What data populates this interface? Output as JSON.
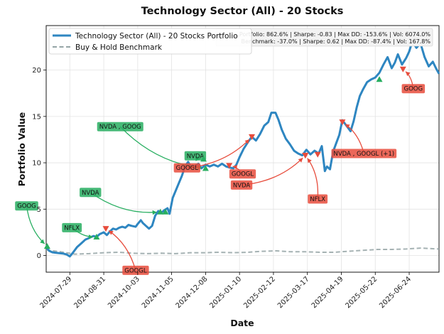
{
  "chart_data": {
    "type": "line",
    "title": "Technology Sector (All) - 20 Stocks",
    "xlabel": "Date",
    "ylabel": "Portfolio Value",
    "x_range": [
      "2024-07-06",
      "2025-07-23"
    ],
    "ylim": [
      -1.8,
      24.8
    ],
    "x_ticks": [
      "2024-07-29",
      "2024-08-31",
      "2024-10-03",
      "2024-11-05",
      "2024-12-08",
      "2025-01-10",
      "2025-02-12",
      "2025-03-17",
      "2025-04-19",
      "2025-05-22",
      "2025-06-24"
    ],
    "y_ticks": [
      0,
      5,
      10,
      15,
      20
    ],
    "grid": true,
    "legend_position": "top-left",
    "series": [
      {
        "name": "Technology Sector (All) - 20 Stocks Portfolio",
        "color": "#2e86c1",
        "style": "solid",
        "points": [
          [
            "2024-07-06",
            0.9
          ],
          [
            "2024-07-09",
            0.5
          ],
          [
            "2024-07-12",
            0.35
          ],
          [
            "2024-07-15",
            0.3
          ],
          [
            "2024-07-19",
            0.25
          ],
          [
            "2024-07-23",
            0.2
          ],
          [
            "2024-07-26",
            0.1
          ],
          [
            "2024-07-29",
            -0.1
          ],
          [
            "2024-08-01",
            0.3
          ],
          [
            "2024-08-05",
            0.9
          ],
          [
            "2024-08-09",
            1.3
          ],
          [
            "2024-08-13",
            1.7
          ],
          [
            "2024-08-17",
            1.9
          ],
          [
            "2024-08-21",
            2.1
          ],
          [
            "2024-08-24",
            2.0
          ],
          [
            "2024-08-27",
            2.3
          ],
          [
            "2024-08-31",
            2.5
          ],
          [
            "2024-09-03",
            2.2
          ],
          [
            "2024-09-06",
            2.6
          ],
          [
            "2024-09-09",
            2.9
          ],
          [
            "2024-09-12",
            2.8
          ],
          [
            "2024-09-15",
            3.0
          ],
          [
            "2024-09-18",
            3.1
          ],
          [
            "2024-09-21",
            3.0
          ],
          [
            "2024-09-24",
            3.3
          ],
          [
            "2024-09-27",
            3.2
          ],
          [
            "2024-10-01",
            3.1
          ],
          [
            "2024-10-03",
            3.4
          ],
          [
            "2024-10-06",
            3.8
          ],
          [
            "2024-10-08",
            3.5
          ],
          [
            "2024-10-11",
            3.2
          ],
          [
            "2024-10-14",
            2.9
          ],
          [
            "2024-10-17",
            3.2
          ],
          [
            "2024-10-20",
            4.3
          ],
          [
            "2024-10-23",
            4.8
          ],
          [
            "2024-10-26",
            4.6
          ],
          [
            "2024-10-29",
            4.9
          ],
          [
            "2024-11-01",
            5.1
          ],
          [
            "2024-11-03",
            4.5
          ],
          [
            "2024-11-06",
            6.2
          ],
          [
            "2024-11-09",
            7.0
          ],
          [
            "2024-11-12",
            7.8
          ],
          [
            "2024-11-15",
            8.6
          ],
          [
            "2024-11-18",
            9.6
          ],
          [
            "2024-11-21",
            10.1
          ],
          [
            "2024-11-24",
            9.5
          ],
          [
            "2024-11-27",
            9.6
          ],
          [
            "2024-12-01",
            9.9
          ],
          [
            "2024-12-04",
            9.4
          ],
          [
            "2024-12-08",
            9.8
          ],
          [
            "2024-12-12",
            9.6
          ],
          [
            "2024-12-16",
            9.8
          ],
          [
            "2024-12-20",
            9.6
          ],
          [
            "2024-12-24",
            9.9
          ],
          [
            "2024-12-28",
            9.6
          ],
          [
            "2024-12-31",
            9.5
          ],
          [
            "2025-01-04",
            9.4
          ],
          [
            "2025-01-07",
            9.8
          ],
          [
            "2025-01-10",
            10.6
          ],
          [
            "2025-01-14",
            11.5
          ],
          [
            "2025-01-18",
            12.2
          ],
          [
            "2025-01-22",
            12.8
          ],
          [
            "2025-01-26",
            12.4
          ],
          [
            "2025-01-30",
            13.1
          ],
          [
            "2025-02-03",
            14.0
          ],
          [
            "2025-02-07",
            14.4
          ],
          [
            "2025-02-10",
            15.4
          ],
          [
            "2025-02-14",
            15.4
          ],
          [
            "2025-02-17",
            14.6
          ],
          [
            "2025-02-20",
            13.6
          ],
          [
            "2025-02-24",
            12.6
          ],
          [
            "2025-02-28",
            12.0
          ],
          [
            "2025-03-04",
            11.3
          ],
          [
            "2025-03-08",
            11.0
          ],
          [
            "2025-03-12",
            10.8
          ],
          [
            "2025-03-16",
            11.4
          ],
          [
            "2025-03-20",
            10.9
          ],
          [
            "2025-03-24",
            11.3
          ],
          [
            "2025-03-28",
            11.0
          ],
          [
            "2025-03-31",
            11.8
          ],
          [
            "2025-04-03",
            9.1
          ],
          [
            "2025-04-05",
            9.6
          ],
          [
            "2025-04-08",
            9.3
          ],
          [
            "2025-04-11",
            11.2
          ],
          [
            "2025-04-14",
            12.1
          ],
          [
            "2025-04-17",
            13.0
          ],
          [
            "2025-04-20",
            14.6
          ],
          [
            "2025-04-24",
            14.0
          ],
          [
            "2025-04-28",
            13.4
          ],
          [
            "2025-05-01",
            14.5
          ],
          [
            "2025-05-04",
            16.0
          ],
          [
            "2025-05-07",
            17.2
          ],
          [
            "2025-05-10",
            17.9
          ],
          [
            "2025-05-14",
            18.7
          ],
          [
            "2025-05-18",
            19.0
          ],
          [
            "2025-05-22",
            19.2
          ],
          [
            "2025-05-26",
            19.7
          ],
          [
            "2025-05-30",
            20.6
          ],
          [
            "2025-06-03",
            21.4
          ],
          [
            "2025-06-07",
            20.2
          ],
          [
            "2025-06-10",
            20.8
          ],
          [
            "2025-06-13",
            21.7
          ],
          [
            "2025-06-17",
            20.6
          ],
          [
            "2025-06-21",
            21.3
          ],
          [
            "2025-06-24",
            22.0
          ],
          [
            "2025-06-27",
            23.1
          ],
          [
            "2025-07-01",
            22.4
          ],
          [
            "2025-07-05",
            22.9
          ],
          [
            "2025-07-09",
            21.4
          ],
          [
            "2025-07-13",
            20.4
          ],
          [
            "2025-07-17",
            20.9
          ],
          [
            "2025-07-20",
            20.2
          ],
          [
            "2025-07-23",
            19.6
          ]
        ]
      },
      {
        "name": "Buy & Hold Benchmark",
        "color": "#95a5a6",
        "style": "dashed",
        "points": [
          [
            "2024-07-06",
            0.6
          ],
          [
            "2024-07-20",
            0.4
          ],
          [
            "2024-08-03",
            0.15
          ],
          [
            "2024-08-17",
            0.2
          ],
          [
            "2024-08-31",
            0.3
          ],
          [
            "2024-09-14",
            0.35
          ],
          [
            "2024-09-28",
            0.25
          ],
          [
            "2024-10-12",
            0.2
          ],
          [
            "2024-10-26",
            0.25
          ],
          [
            "2024-11-09",
            0.2
          ],
          [
            "2024-11-23",
            0.3
          ],
          [
            "2024-12-07",
            0.3
          ],
          [
            "2024-12-21",
            0.35
          ],
          [
            "2025-01-04",
            0.3
          ],
          [
            "2025-01-18",
            0.35
          ],
          [
            "2025-02-01",
            0.45
          ],
          [
            "2025-02-15",
            0.5
          ],
          [
            "2025-03-01",
            0.4
          ],
          [
            "2025-03-15",
            0.4
          ],
          [
            "2025-03-29",
            0.35
          ],
          [
            "2025-04-12",
            0.35
          ],
          [
            "2025-04-26",
            0.45
          ],
          [
            "2025-05-10",
            0.55
          ],
          [
            "2025-05-24",
            0.65
          ],
          [
            "2025-06-07",
            0.65
          ],
          [
            "2025-06-21",
            0.7
          ],
          [
            "2025-07-05",
            0.8
          ],
          [
            "2025-07-23",
            0.7
          ]
        ]
      }
    ],
    "stats": [
      "Portfolio: 862.6% | Sharpe: -0.83 | Max DD: -153.6% | Vol: 6074.0%",
      "Benchmark: -37.0% | Sharpe: 0.62 | Max DD: -87.4% | Vol: 167.8%"
    ],
    "buy_color": "#27ae60",
    "sell_color": "#e74c3c",
    "signals": [
      {
        "side": "buy",
        "date": "2024-07-07",
        "value": 1.0,
        "label": "GOOG",
        "label_date": "2024-06-17",
        "label_value": 5.35
      },
      {
        "side": "buy",
        "date": "2024-08-24",
        "value": 2.0,
        "label": "NFLX",
        "label_date": "2024-07-31",
        "label_value": 3.0
      },
      {
        "side": "buy",
        "date": "2024-10-25",
        "value": 4.7,
        "label": "NVDA",
        "label_date": "2024-08-18",
        "label_value": 6.8
      },
      {
        "side": "buy",
        "date": "2024-10-30",
        "value": 4.7,
        "label": null
      },
      {
        "side": "buy",
        "date": "2024-12-08",
        "value": 9.4,
        "label": "NVDA , GOOG",
        "label_date": "2024-09-16",
        "label_value": 13.9
      },
      {
        "side": "buy",
        "date": "2024-12-06",
        "value": 10.4,
        "label": "NVDA",
        "label_date": "2024-11-28",
        "label_value": 10.75
      },
      {
        "side": "buy",
        "date": "2025-05-26",
        "value": 19.0,
        "label": null
      },
      {
        "side": "sell",
        "date": "2024-09-02",
        "value": 2.9,
        "label": "GOOGL",
        "label_date": "2024-10-01",
        "label_value": -1.6
      },
      {
        "side": "sell",
        "date": "2024-12-31",
        "value": 9.7,
        "label": "GOOGL",
        "label_date": "2025-01-13",
        "label_value": 8.8
      },
      {
        "side": "sell",
        "date": "2025-01-22",
        "value": 12.8,
        "label": "GOOGL",
        "label_date": "2024-11-20",
        "label_value": 9.45
      },
      {
        "side": "sell",
        "date": "2025-03-15",
        "value": 10.8,
        "label": "NVDA",
        "label_date": "2025-01-12",
        "label_value": 7.6
      },
      {
        "side": "sell",
        "date": "2025-03-27",
        "value": 10.9,
        "label": null
      },
      {
        "side": "sell",
        "date": "2025-04-20",
        "value": 14.4,
        "label": "NVDA , GOOGL (+1)",
        "label_date": "2025-05-11",
        "label_value": 11.0
      },
      {
        "side": "sell",
        "date": "2025-06-18",
        "value": 20.1,
        "label": "GOOG",
        "label_date": "2025-06-28",
        "label_value": 18.0
      },
      {
        "side": "sell",
        "date": "2025-03-15",
        "value": 10.8,
        "label": "NFLX",
        "label_date": "2025-03-27",
        "label_value": 6.1
      }
    ]
  }
}
